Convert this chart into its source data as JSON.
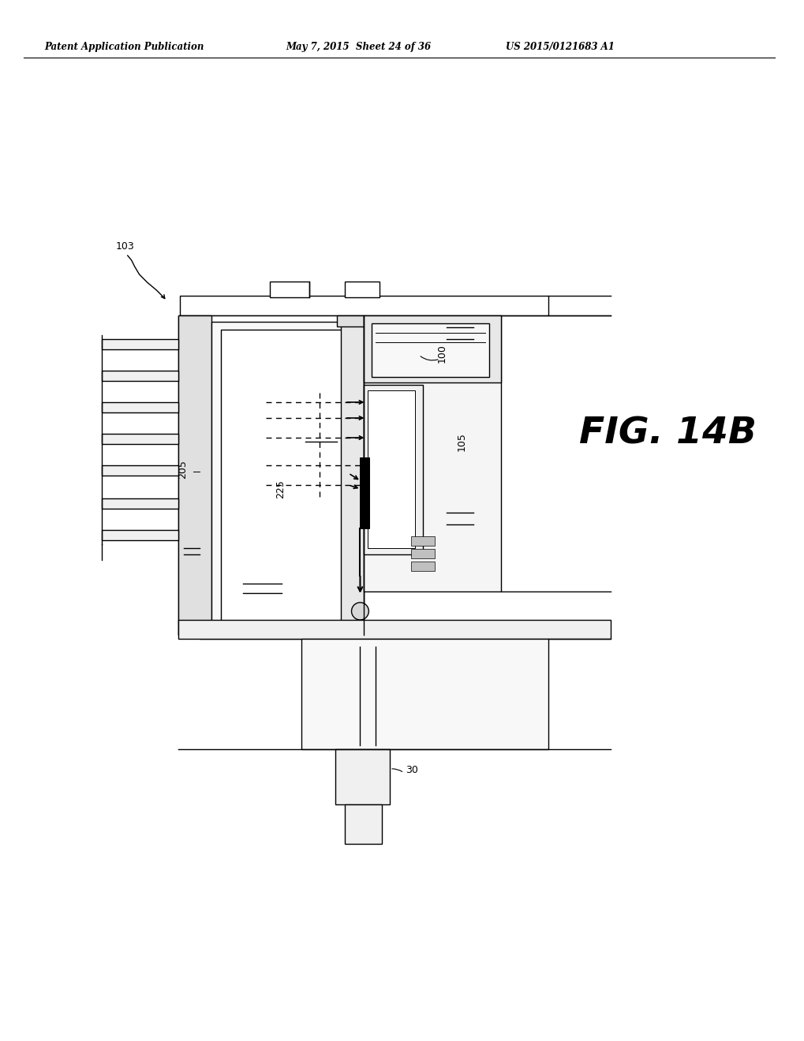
{
  "bg_color": "#ffffff",
  "line_color": "#000000",
  "header_text": "Patent Application Publication",
  "header_date": "May 7, 2015",
  "header_sheet": "Sheet 24 of 36",
  "header_patent": "US 2015/0121683 A1",
  "fig_label": "FIG. 14B",
  "ref_100": "100",
  "ref_103": "103",
  "ref_105": "105",
  "ref_205": "205",
  "ref_225": "225",
  "ref_30": "30"
}
